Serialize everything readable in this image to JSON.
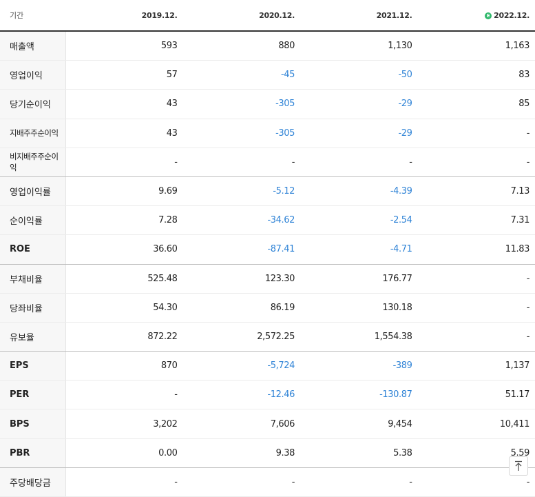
{
  "header": {
    "label": "기간",
    "periods": [
      {
        "text": "2019.12.",
        "estimate": false
      },
      {
        "text": "2020.12.",
        "estimate": false
      },
      {
        "text": "2021.12.",
        "estimate": false
      },
      {
        "text": "2022.12.",
        "estimate": true
      }
    ],
    "estimate_badge": "E"
  },
  "rows": [
    {
      "label": "매출액",
      "values": [
        "593",
        "880",
        "1,130",
        "1,163"
      ]
    },
    {
      "label": "영업이익",
      "values": [
        "57",
        "-45",
        "-50",
        "83"
      ]
    },
    {
      "label": "당기순이익",
      "values": [
        "43",
        "-305",
        "-29",
        "85"
      ]
    },
    {
      "label": "지배주주순이익",
      "values": [
        "43",
        "-305",
        "-29",
        "-"
      ]
    },
    {
      "label": "비지배주주순이익",
      "values": [
        "-",
        "-",
        "-",
        "-"
      ]
    },
    {
      "label": "영업이익률",
      "values": [
        "9.69",
        "-5.12",
        "-4.39",
        "7.13"
      ]
    },
    {
      "label": "순이익률",
      "values": [
        "7.28",
        "-34.62",
        "-2.54",
        "7.31"
      ]
    },
    {
      "label": "ROE",
      "values": [
        "36.60",
        "-87.41",
        "-4.71",
        "11.83"
      ]
    },
    {
      "label": "부채비율",
      "values": [
        "525.48",
        "123.30",
        "176.77",
        "-"
      ]
    },
    {
      "label": "당좌비율",
      "values": [
        "54.30",
        "86.19",
        "130.18",
        "-"
      ]
    },
    {
      "label": "유보율",
      "values": [
        "872.22",
        "2,572.25",
        "1,554.38",
        "-"
      ]
    },
    {
      "label": "EPS",
      "values": [
        "870",
        "-5,724",
        "-389",
        "1,137"
      ]
    },
    {
      "label": "PER",
      "values": [
        "-",
        "-12.46",
        "-130.87",
        "51.17"
      ]
    },
    {
      "label": "BPS",
      "values": [
        "3,202",
        "7,606",
        "9,454",
        "10,411"
      ]
    },
    {
      "label": "PBR",
      "values": [
        "0.00",
        "9.38",
        "5.38",
        "5.59"
      ]
    },
    {
      "label": "주당배당금",
      "values": [
        "-",
        "-",
        "-",
        "-"
      ]
    }
  ],
  "scroll_top_icon": "arrow-up-to-top-icon",
  "colors": {
    "negative": "#2f83d6",
    "estimate_badge": "#2fb86b"
  }
}
